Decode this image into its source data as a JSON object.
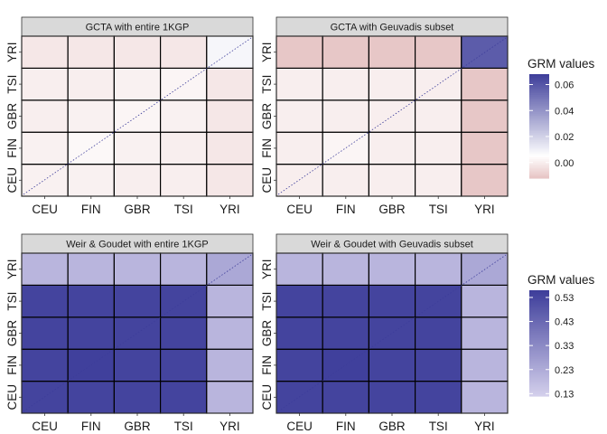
{
  "chart_data": [
    {
      "type": "heatmap",
      "title": "GCTA with entire 1KGP",
      "categories": [
        "CEU",
        "FIN",
        "GBR",
        "TSI",
        "YRI"
      ],
      "legend_ref": 0,
      "values": [
        [
          0.001,
          0.001,
          0.0,
          0.0,
          -0.002
        ],
        [
          0.001,
          0.003,
          0.001,
          0.0,
          -0.002
        ],
        [
          0.0,
          0.001,
          0.002,
          0.001,
          -0.002
        ],
        [
          0.0,
          0.0,
          0.001,
          0.002,
          -0.002
        ],
        [
          -0.002,
          -0.002,
          -0.002,
          -0.002,
          0.008
        ]
      ]
    },
    {
      "type": "heatmap",
      "title": "GCTA with Geuvadis subset",
      "categories": [
        "CEU",
        "FIN",
        "GBR",
        "TSI",
        "YRI"
      ],
      "legend_ref": 0,
      "values": [
        [
          0.0,
          0.0,
          0.0,
          0.0,
          -0.011
        ],
        [
          0.0,
          0.002,
          0.0,
          0.0,
          -0.011
        ],
        [
          0.0,
          0.0,
          0.0,
          0.0,
          -0.011
        ],
        [
          0.0,
          0.0,
          0.0,
          0.0,
          -0.011
        ],
        [
          -0.011,
          -0.011,
          -0.011,
          -0.011,
          0.058
        ]
      ]
    },
    {
      "type": "heatmap",
      "title": "Weir & Goudet with entire 1KGP",
      "categories": [
        "CEU",
        "FIN",
        "GBR",
        "TSI",
        "YRI"
      ],
      "legend_ref": 1,
      "values": [
        [
          0.54,
          0.54,
          0.54,
          0.54,
          0.2
        ],
        [
          0.54,
          0.55,
          0.54,
          0.54,
          0.2
        ],
        [
          0.54,
          0.54,
          0.54,
          0.54,
          0.2
        ],
        [
          0.54,
          0.54,
          0.54,
          0.54,
          0.2
        ],
        [
          0.2,
          0.2,
          0.2,
          0.2,
          0.24
        ]
      ]
    },
    {
      "type": "heatmap",
      "title": "Weir & Goudet with Geuvadis subset",
      "categories": [
        "CEU",
        "FIN",
        "GBR",
        "TSI",
        "YRI"
      ],
      "legend_ref": 1,
      "values": [
        [
          0.54,
          0.54,
          0.54,
          0.54,
          0.2
        ],
        [
          0.54,
          0.55,
          0.54,
          0.54,
          0.2
        ],
        [
          0.54,
          0.54,
          0.54,
          0.54,
          0.2
        ],
        [
          0.54,
          0.54,
          0.54,
          0.54,
          0.2
        ],
        [
          0.2,
          0.2,
          0.2,
          0.2,
          0.24
        ]
      ]
    }
  ],
  "legends": [
    {
      "title": "GRM values",
      "ticks": [
        0.06,
        0.04,
        0.02,
        0.0
      ],
      "tick_labels": [
        "0.06",
        "0.04",
        "0.02",
        "0.00"
      ],
      "range": [
        -0.012,
        0.068
      ],
      "low_color": "#e6c4c4",
      "mid_value": 0.005,
      "mid_color": "#ffffff",
      "high_color": "#3d3d9a"
    },
    {
      "title": "GRM values",
      "ticks": [
        0.53,
        0.43,
        0.33,
        0.23,
        0.13
      ],
      "tick_labels": [
        "0.53",
        "0.43",
        "0.33",
        "0.23",
        "0.13"
      ],
      "range": [
        0.12,
        0.56
      ],
      "low_color": "#d4d0ec",
      "high_color": "#3d3d9a"
    }
  ],
  "colors": {
    "strip_fill": "#d9d9d9",
    "cell_border": "#000000",
    "diagonal": "#3d3d9a"
  }
}
